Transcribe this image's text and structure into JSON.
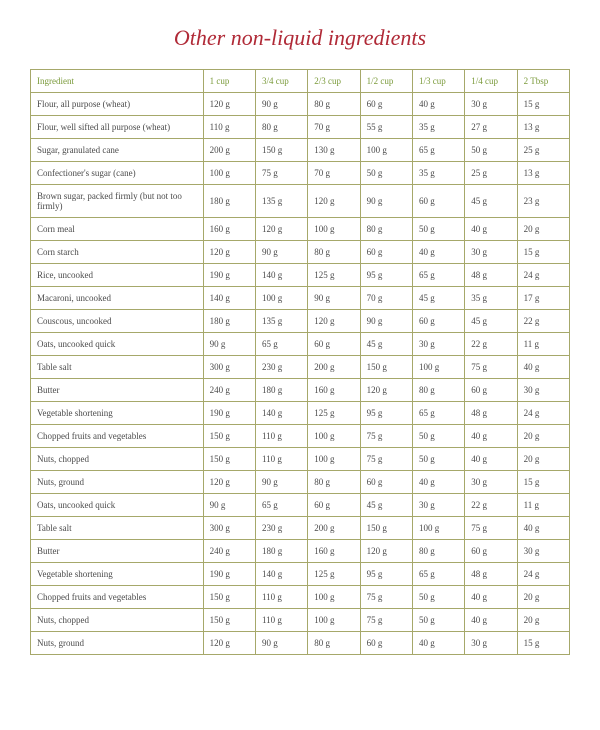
{
  "title": "Other non-liquid ingredients",
  "title_color": "#b02a37",
  "border_color": "#a6a86a",
  "header_text_color": "#7a9a3a",
  "body_text_color": "#4a4a4a",
  "columns": [
    "Ingredient",
    "1 cup",
    "3/4 cup",
    "2/3 cup",
    "1/2 cup",
    "1/3 cup",
    "1/4 cup",
    "2 Tbsp"
  ],
  "rows": [
    [
      "Flour, all purpose (wheat)",
      "120 g",
      "90 g",
      "80 g",
      "60 g",
      "40 g",
      "30 g",
      "15 g"
    ],
    [
      "Flour, well sifted all purpose (wheat)",
      "110 g",
      "80 g",
      "70 g",
      "55 g",
      "35 g",
      "27 g",
      "13 g"
    ],
    [
      "Sugar, granulated cane",
      "200 g",
      "150 g",
      "130 g",
      "100 g",
      "65 g",
      "50 g",
      "25 g"
    ],
    [
      "Confectioner's sugar (cane)",
      "100 g",
      "75 g",
      "70 g",
      "50 g",
      "35 g",
      "25 g",
      "13 g"
    ],
    [
      "Brown sugar, packed firmly (but not too firmly)",
      "180 g",
      "135 g",
      "120 g",
      "90 g",
      "60 g",
      "45 g",
      "23 g"
    ],
    [
      "Corn meal",
      "160 g",
      "120 g",
      "100 g",
      "80 g",
      "50 g",
      "40 g",
      "20 g"
    ],
    [
      "Corn starch",
      "120 g",
      "90 g",
      "80 g",
      "60 g",
      "40 g",
      "30 g",
      "15 g"
    ],
    [
      "Rice, uncooked",
      "190 g",
      "140 g",
      "125 g",
      "95 g",
      "65 g",
      "48 g",
      "24 g"
    ],
    [
      "Macaroni, uncooked",
      "140 g",
      "100 g",
      "90 g",
      "70 g",
      "45 g",
      "35 g",
      "17 g"
    ],
    [
      "Couscous, uncooked",
      "180 g",
      "135 g",
      "120 g",
      "90 g",
      "60 g",
      "45 g",
      "22 g"
    ],
    [
      "Oats, uncooked quick",
      "90 g",
      "65 g",
      "60 g",
      "45 g",
      "30 g",
      "22 g",
      "11 g"
    ],
    [
      "Table salt",
      "300 g",
      "230 g",
      "200 g",
      "150 g",
      "100 g",
      "75 g",
      "40 g"
    ],
    [
      "Butter",
      "240 g",
      "180 g",
      "160 g",
      "120 g",
      "80 g",
      "60 g",
      "30 g"
    ],
    [
      "Vegetable shortening",
      "190 g",
      "140 g",
      "125 g",
      "95 g",
      "65 g",
      "48 g",
      "24 g"
    ],
    [
      "Chopped fruits and vegetables",
      "150 g",
      "110 g",
      "100 g",
      "75 g",
      "50 g",
      "40 g",
      "20 g"
    ],
    [
      "Nuts, chopped",
      "150 g",
      "110 g",
      "100 g",
      "75 g",
      "50 g",
      "40 g",
      "20 g"
    ],
    [
      "Nuts, ground",
      "120 g",
      "90 g",
      "80 g",
      "60 g",
      "40 g",
      "30 g",
      "15 g"
    ],
    [
      "Oats, uncooked quick",
      "90 g",
      "65 g",
      "60 g",
      "45 g",
      "30 g",
      "22 g",
      "11 g"
    ],
    [
      "Table salt",
      "300 g",
      "230 g",
      "200 g",
      "150 g",
      "100 g",
      "75 g",
      "40 g"
    ],
    [
      "Butter",
      "240 g",
      "180 g",
      "160 g",
      "120 g",
      "80 g",
      "60 g",
      "30 g"
    ],
    [
      "Vegetable shortening",
      "190 g",
      "140 g",
      "125 g",
      "95 g",
      "65 g",
      "48 g",
      "24 g"
    ],
    [
      "Chopped fruits and vegetables",
      "150 g",
      "110 g",
      "100 g",
      "75 g",
      "50 g",
      "40 g",
      "20 g"
    ],
    [
      "Nuts, chopped",
      "150 g",
      "110 g",
      "100 g",
      "75 g",
      "50 g",
      "40 g",
      "20 g"
    ],
    [
      "Nuts, ground",
      "120 g",
      "90 g",
      "80 g",
      "60 g",
      "40 g",
      "30 g",
      "15 g"
    ]
  ]
}
